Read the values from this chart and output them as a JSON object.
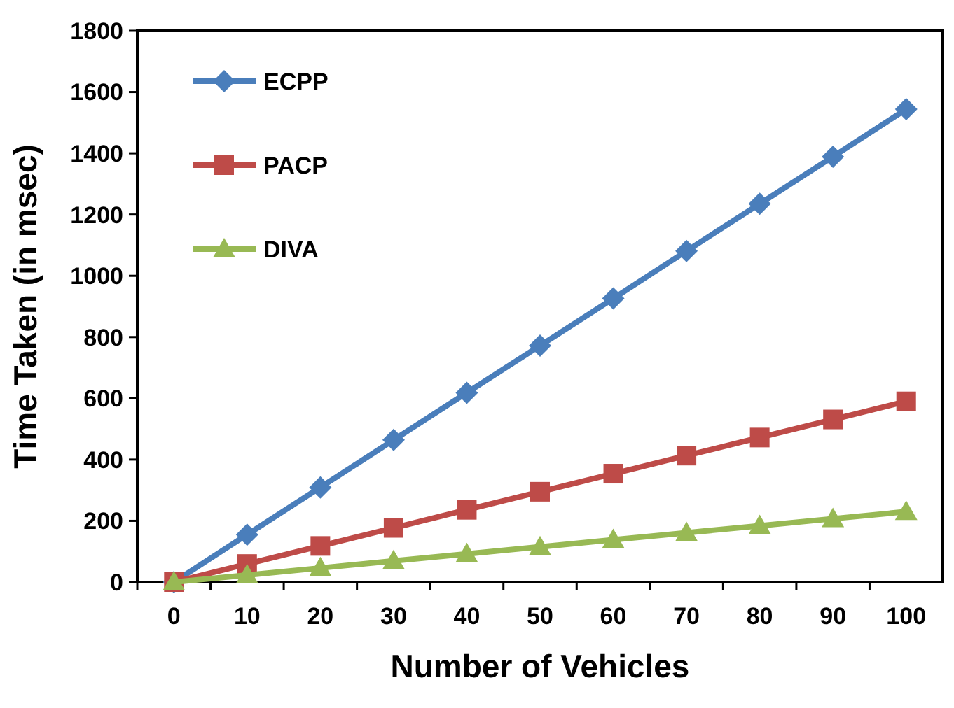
{
  "chart_data": {
    "type": "line",
    "xlabel": "Number of Vehicles",
    "ylabel": "Time Taken (in msec)",
    "categories": [
      "0",
      "10",
      "20",
      "30",
      "40",
      "50",
      "60",
      "70",
      "80",
      "90",
      "100"
    ],
    "series": [
      {
        "name": "ECPP",
        "color": "#4a7ebb",
        "marker": "diamond",
        "values": [
          0,
          155,
          309,
          464,
          618,
          772,
          926,
          1081,
          1235,
          1389,
          1544
        ]
      },
      {
        "name": "PACP",
        "color": "#be4b48",
        "marker": "square",
        "values": [
          0,
          59,
          118,
          177,
          236,
          295,
          354,
          413,
          472,
          531,
          590
        ]
      },
      {
        "name": "DIVA",
        "color": "#98b954",
        "marker": "triangle",
        "values": [
          0,
          23,
          46,
          69,
          92,
          115,
          138,
          161,
          184,
          207,
          230
        ]
      }
    ],
    "ylim": [
      0,
      1800
    ],
    "yticks": [
      0,
      200,
      400,
      600,
      800,
      1000,
      1200,
      1400,
      1600,
      1800
    ],
    "grid": false,
    "legend": "top left",
    "line_style": "solid"
  }
}
